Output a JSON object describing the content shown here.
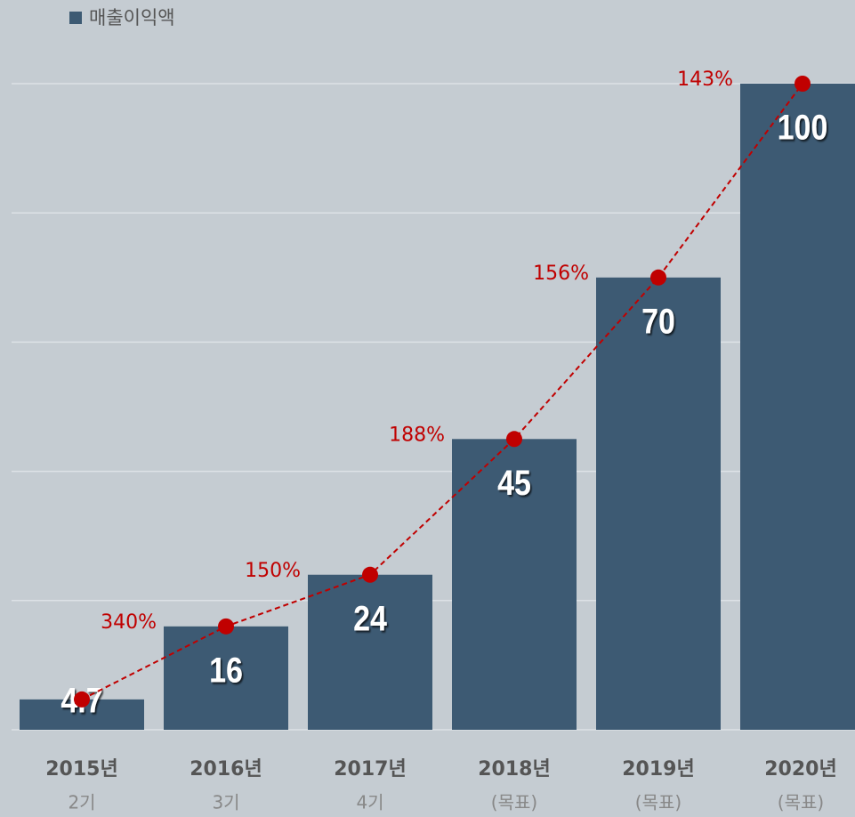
{
  "chart_data": {
    "type": "bar",
    "series": [
      {
        "name": "매출이익액",
        "color": "#3d5a73",
        "values": [
          4.7,
          16,
          24,
          45,
          70,
          100
        ]
      }
    ],
    "line": {
      "color": "#c00000",
      "values": [
        4.7,
        16,
        24,
        45,
        70,
        100
      ]
    },
    "annotations": [
      null,
      "340%",
      "150%",
      "188%",
      "156%",
      "143%"
    ],
    "categories": [
      "2015년",
      "2016년",
      "2017년",
      "2018년",
      "2019년",
      "2020년"
    ],
    "sublabels": [
      "2기",
      "3기",
      "4기",
      "(목표)",
      "(목표)",
      "(목표)"
    ],
    "ylim": [
      0,
      100
    ],
    "yticks": [
      0,
      20,
      40,
      60,
      80,
      100
    ],
    "grid": true,
    "legend": "top-left"
  }
}
